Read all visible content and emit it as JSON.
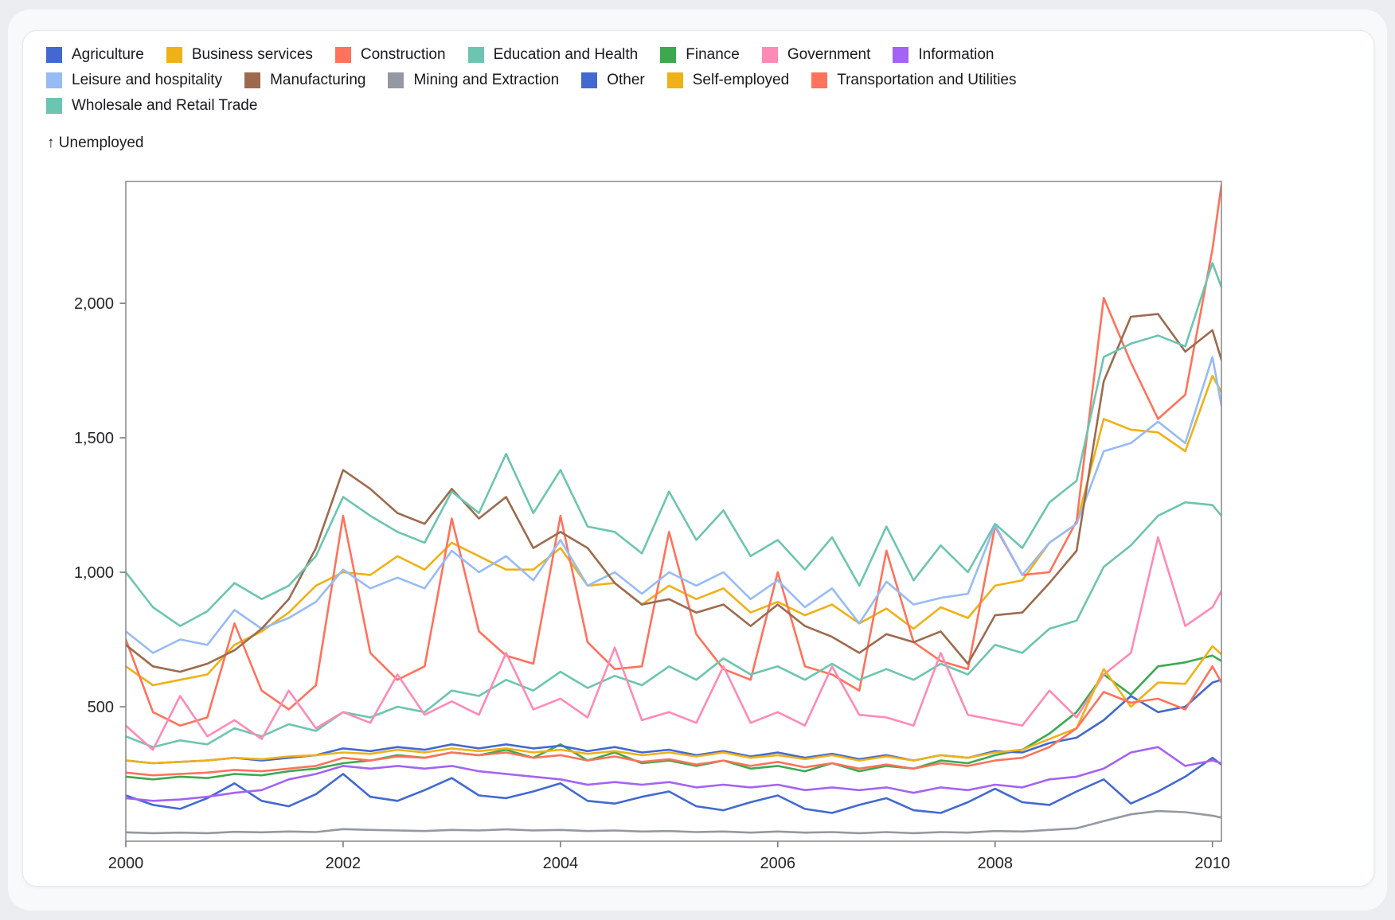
{
  "page": {
    "background_color": "#ebedf0",
    "card_background": "#ffffff"
  },
  "chart_data": {
    "type": "line",
    "y_axis_title": "↑ Unemployed",
    "ylabel": "Unemployed",
    "xlabel": "",
    "grid": false,
    "legend_position": "top",
    "x_domain": [
      2000,
      2010.083
    ],
    "y_domain": [
      0,
      2453
    ],
    "x_ticks": [
      {
        "value": 2000,
        "label": "2000"
      },
      {
        "value": 2002,
        "label": "2002"
      },
      {
        "value": 2004,
        "label": "2004"
      },
      {
        "value": 2006,
        "label": "2006"
      },
      {
        "value": 2008,
        "label": "2008"
      },
      {
        "value": 2010,
        "label": "2010"
      }
    ],
    "y_ticks": [
      {
        "value": 500,
        "label": "500"
      },
      {
        "value": 1000,
        "label": "1,000"
      },
      {
        "value": 1500,
        "label": "1,500"
      },
      {
        "value": 2000,
        "label": "2,000"
      }
    ],
    "x": [
      2000.0,
      2000.25,
      2000.5,
      2000.75,
      2001.0,
      2001.25,
      2001.5,
      2001.75,
      2002.0,
      2002.25,
      2002.5,
      2002.75,
      2003.0,
      2003.25,
      2003.5,
      2003.75,
      2004.0,
      2004.25,
      2004.5,
      2004.75,
      2005.0,
      2005.25,
      2005.5,
      2005.75,
      2006.0,
      2006.25,
      2006.5,
      2006.75,
      2007.0,
      2007.25,
      2007.5,
      2007.75,
      2008.0,
      2008.25,
      2008.5,
      2008.75,
      2009.0,
      2009.25,
      2009.5,
      2009.75,
      2010.0,
      2010.083
    ],
    "series": [
      {
        "name": "Agriculture",
        "color": "#4269d0",
        "values": [
          170,
          135,
          120,
          160,
          215,
          150,
          130,
          175,
          250,
          165,
          150,
          190,
          235,
          170,
          160,
          185,
          215,
          150,
          140,
          165,
          185,
          130,
          115,
          145,
          170,
          120,
          105,
          135,
          160,
          115,
          105,
          145,
          195,
          145,
          135,
          185,
          230,
          140,
          185,
          240,
          310,
          285
        ]
      },
      {
        "name": "Business services",
        "color": "#efb118",
        "values": [
          650,
          580,
          600,
          620,
          730,
          780,
          850,
          950,
          1000,
          990,
          1060,
          1010,
          1110,
          1060,
          1010,
          1010,
          1090,
          950,
          960,
          880,
          950,
          900,
          940,
          850,
          890,
          840,
          880,
          810,
          865,
          790,
          870,
          830,
          950,
          970,
          1110,
          1180,
          1570,
          1530,
          1520,
          1450,
          1730,
          1670
        ]
      },
      {
        "name": "Construction",
        "color": "#ff725c",
        "values": [
          750,
          480,
          430,
          460,
          810,
          560,
          490,
          580,
          1210,
          700,
          600,
          650,
          1200,
          780,
          690,
          660,
          1210,
          740,
          640,
          650,
          1150,
          770,
          640,
          600,
          1000,
          650,
          620,
          560,
          1080,
          740,
          670,
          640,
          1170,
          990,
          1000,
          1190,
          2020,
          1780,
          1570,
          1660,
          2200,
          2440
        ]
      },
      {
        "name": "Education and Health",
        "color": "#6cc5b0",
        "values": [
          390,
          350,
          375,
          360,
          420,
          390,
          435,
          410,
          480,
          460,
          500,
          480,
          560,
          540,
          600,
          560,
          630,
          570,
          615,
          580,
          650,
          600,
          680,
          620,
          650,
          600,
          660,
          600,
          640,
          600,
          660,
          620,
          730,
          700,
          790,
          820,
          1020,
          1100,
          1210,
          1260,
          1250,
          1210
        ]
      },
      {
        "name": "Finance",
        "color": "#3ca951",
        "values": [
          240,
          230,
          240,
          235,
          250,
          245,
          260,
          270,
          290,
          300,
          320,
          310,
          330,
          320,
          340,
          310,
          360,
          300,
          330,
          290,
          300,
          280,
          300,
          270,
          280,
          260,
          290,
          260,
          280,
          270,
          300,
          290,
          320,
          340,
          400,
          480,
          620,
          545,
          650,
          665,
          690,
          670
        ]
      },
      {
        "name": "Government",
        "color": "#ff8ab7",
        "values": [
          430,
          340,
          540,
          390,
          450,
          380,
          560,
          420,
          480,
          440,
          620,
          470,
          520,
          470,
          700,
          490,
          530,
          460,
          720,
          450,
          480,
          440,
          650,
          440,
          480,
          430,
          650,
          470,
          460,
          430,
          700,
          470,
          450,
          430,
          560,
          460,
          620,
          700,
          1130,
          800,
          870,
          930
        ]
      },
      {
        "name": "Information",
        "color": "#a463f2",
        "values": [
          160,
          150,
          155,
          165,
          180,
          190,
          230,
          250,
          280,
          270,
          280,
          270,
          280,
          260,
          250,
          240,
          230,
          210,
          220,
          210,
          220,
          200,
          210,
          200,
          210,
          190,
          200,
          190,
          200,
          180,
          200,
          190,
          210,
          200,
          230,
          240,
          270,
          330,
          350,
          280,
          300,
          290
        ]
      },
      {
        "name": "Leisure and hospitality",
        "color": "#97bbf5",
        "values": [
          780,
          700,
          750,
          730,
          860,
          790,
          830,
          890,
          1010,
          940,
          980,
          940,
          1080,
          1000,
          1060,
          970,
          1120,
          950,
          1000,
          920,
          1000,
          950,
          1000,
          900,
          970,
          870,
          940,
          810,
          965,
          880,
          905,
          920,
          1175,
          990,
          1110,
          1180,
          1450,
          1480,
          1560,
          1480,
          1800,
          1620
        ]
      },
      {
        "name": "Manufacturing",
        "color": "#9c6b4e",
        "values": [
          730,
          650,
          630,
          660,
          710,
          790,
          900,
          1090,
          1380,
          1310,
          1220,
          1180,
          1310,
          1200,
          1280,
          1090,
          1150,
          1090,
          960,
          880,
          900,
          850,
          880,
          800,
          880,
          800,
          760,
          700,
          770,
          740,
          780,
          660,
          840,
          850,
          960,
          1080,
          1710,
          1950,
          1960,
          1820,
          1900,
          1790
        ]
      },
      {
        "name": "Mining and Extraction",
        "color": "#9498a0",
        "values": [
          33,
          30,
          32,
          30,
          35,
          33,
          36,
          34,
          45,
          42,
          40,
          38,
          42,
          40,
          44,
          40,
          42,
          38,
          40,
          36,
          38,
          34,
          36,
          32,
          36,
          32,
          34,
          30,
          34,
          30,
          34,
          32,
          38,
          36,
          42,
          48,
          75,
          100,
          112,
          108,
          95,
          88
        ]
      },
      {
        "name": "Other",
        "color": "#4269d0",
        "values": [
          300,
          290,
          295,
          300,
          310,
          300,
          310,
          320,
          345,
          335,
          350,
          340,
          360,
          345,
          360,
          345,
          355,
          335,
          350,
          330,
          340,
          320,
          335,
          315,
          330,
          310,
          325,
          305,
          320,
          300,
          320,
          310,
          335,
          330,
          365,
          385,
          450,
          540,
          480,
          500,
          590,
          600
        ]
      },
      {
        "name": "Self-employed",
        "color": "#efb118",
        "values": [
          300,
          290,
          295,
          300,
          310,
          305,
          315,
          320,
          330,
          325,
          340,
          330,
          345,
          335,
          345,
          330,
          340,
          325,
          335,
          320,
          330,
          315,
          330,
          310,
          320,
          305,
          320,
          300,
          315,
          300,
          320,
          310,
          330,
          340,
          380,
          420,
          640,
          500,
          590,
          585,
          725,
          695
        ]
      },
      {
        "name": "Transportation and Utilities",
        "color": "#ff725c",
        "values": [
          255,
          245,
          250,
          255,
          265,
          260,
          270,
          280,
          310,
          300,
          315,
          310,
          330,
          320,
          330,
          310,
          320,
          300,
          315,
          295,
          305,
          285,
          300,
          280,
          295,
          275,
          290,
          270,
          285,
          270,
          290,
          280,
          300,
          310,
          350,
          420,
          555,
          515,
          530,
          490,
          650,
          590
        ]
      },
      {
        "name": "Wholesale and Retail Trade",
        "color": "#6cc5b0",
        "values": [
          1000,
          870,
          800,
          855,
          960,
          900,
          950,
          1060,
          1280,
          1210,
          1150,
          1110,
          1300,
          1220,
          1440,
          1220,
          1380,
          1170,
          1150,
          1070,
          1300,
          1120,
          1230,
          1060,
          1120,
          1010,
          1130,
          950,
          1170,
          970,
          1100,
          1000,
          1180,
          1090,
          1260,
          1340,
          1800,
          1850,
          1880,
          1840,
          2150,
          2060
        ]
      }
    ]
  }
}
